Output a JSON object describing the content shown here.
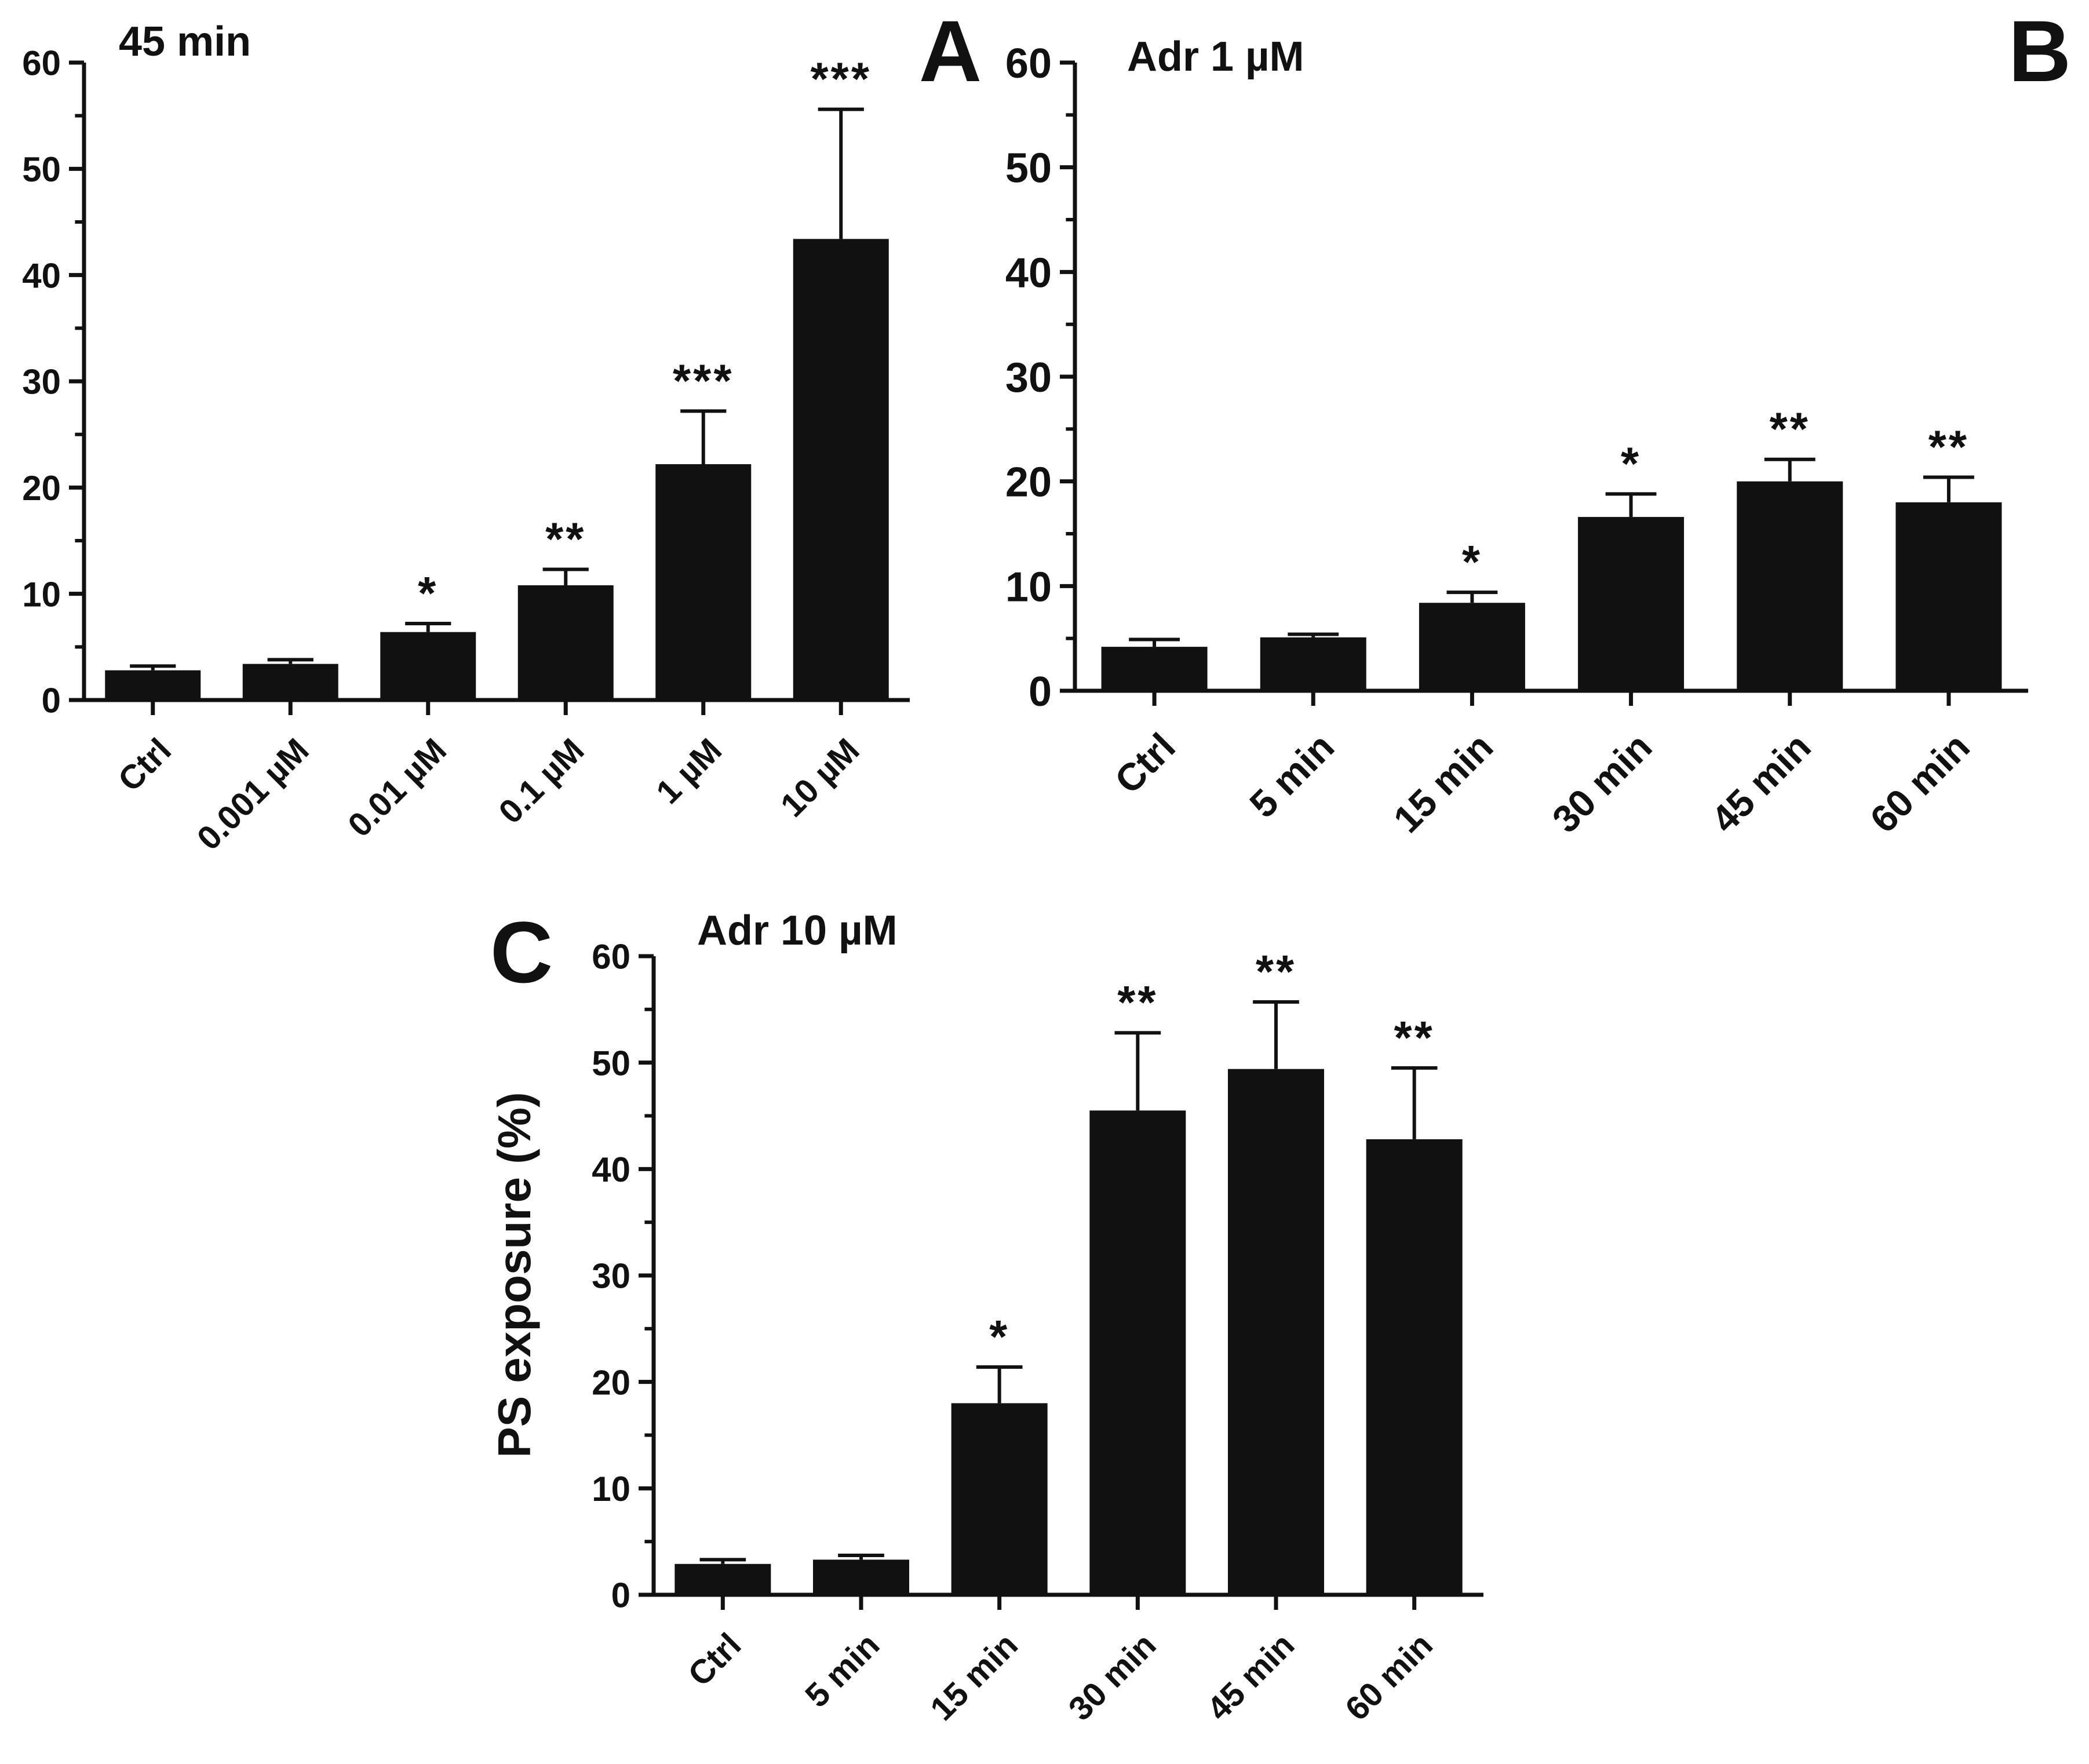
{
  "colors": {
    "bar": "#111111",
    "axis": "#111111",
    "background": "#ffffff"
  },
  "chart_data": [
    {
      "type": "bar",
      "panel": "A",
      "title": "45 min",
      "xlabel": "",
      "ylabel": "",
      "ylim": [
        0,
        60
      ],
      "yticks": [
        "0",
        "10",
        "20",
        "30",
        "40",
        "50",
        "60"
      ],
      "categories": [
        "Ctrl",
        "0.001 µM",
        "0.01 µM",
        "0.1 µM",
        "1 µM",
        "10 µM"
      ],
      "values": [
        2.8,
        3.4,
        6.4,
        10.8,
        22.2,
        43.4
      ],
      "errors": [
        0.4,
        0.4,
        0.8,
        1.5,
        5.0,
        12.2
      ],
      "significance": [
        "",
        "",
        "*",
        "**",
        "***",
        "***"
      ]
    },
    {
      "type": "bar",
      "panel": "B",
      "title": "Adr 1 µM",
      "xlabel": "",
      "ylabel": "",
      "ylim": [
        0,
        60
      ],
      "yticks": [
        "0",
        "10",
        "20",
        "30",
        "40",
        "50",
        "60"
      ],
      "categories": [
        "Ctrl",
        "5 min",
        "15 min",
        "30 min",
        "45 min",
        "60 min"
      ],
      "values": [
        4.2,
        5.1,
        8.4,
        16.6,
        20.0,
        18.0
      ],
      "errors": [
        0.7,
        0.3,
        1.0,
        2.2,
        2.1,
        2.4
      ],
      "significance": [
        "",
        "",
        "*",
        "*",
        "**",
        "**"
      ]
    },
    {
      "type": "bar",
      "panel": "C",
      "title": "Adr 10 µM",
      "xlabel": "",
      "ylabel": "PS exposure (%)",
      "ylim": [
        0,
        60
      ],
      "yticks": [
        "0",
        "10",
        "20",
        "30",
        "40",
        "50",
        "60"
      ],
      "categories": [
        "Ctrl",
        "5 min",
        "15 min",
        "30 min",
        "45 min",
        "60 min"
      ],
      "values": [
        2.9,
        3.3,
        18.0,
        45.5,
        49.4,
        42.8
      ],
      "errors": [
        0.4,
        0.4,
        3.4,
        7.3,
        6.3,
        6.7
      ],
      "significance": [
        "",
        "",
        "*",
        "**",
        "**",
        "**"
      ]
    }
  ]
}
